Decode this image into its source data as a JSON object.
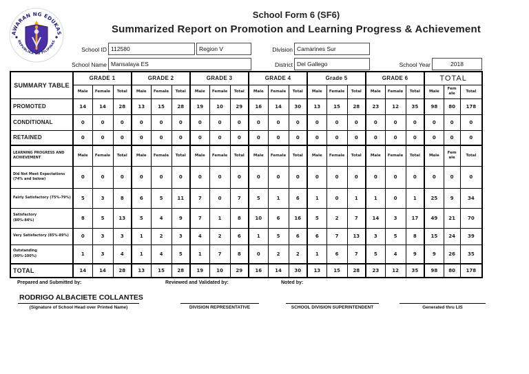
{
  "header": {
    "title1": "School Form 6 (SF6)",
    "title2": "Summarized Report on Promotion and Learning Progress & Achievement",
    "logo_top_text": "KAGAWARAN NG EDUKASYON",
    "logo_bottom_text": "REPUBLIKA NG PILIPINAS"
  },
  "info": {
    "school_id_label": "School ID",
    "school_id_value": "112580",
    "region_value": "Region V",
    "division_label": "Division",
    "division_value": "Camarines Sur",
    "school_name_label": "School Name",
    "school_name_value": "Mansalaya ES",
    "district_label": "District",
    "district_value": "Del Gallego",
    "school_year_label": "School Year",
    "school_year_value": "2018"
  },
  "table": {
    "summary_header": "SUMMARY TABLE",
    "groups": [
      "GRADE 1",
      "GRADE 2",
      "GRADE 3",
      "GRADE 4",
      "Grade 5",
      "GRADE 6",
      "TOTAL"
    ],
    "sub_headers": [
      "Male",
      "Female",
      "Total"
    ],
    "rows": [
      {
        "label": "PROMOTED",
        "type": "main",
        "values": [
          14,
          14,
          28,
          13,
          15,
          28,
          19,
          10,
          29,
          16,
          14,
          30,
          13,
          15,
          28,
          23,
          12,
          35,
          98,
          80,
          178
        ]
      },
      {
        "label": "CONDITIONAL",
        "type": "main",
        "values": [
          0,
          0,
          0,
          0,
          0,
          0,
          0,
          0,
          0,
          0,
          0,
          0,
          0,
          0,
          0,
          0,
          0,
          0,
          0,
          0,
          0
        ]
      },
      {
        "label": "RETAINED",
        "type": "main",
        "values": [
          0,
          0,
          0,
          0,
          0,
          0,
          0,
          0,
          0,
          0,
          0,
          0,
          0,
          0,
          0,
          0,
          0,
          0,
          0,
          0,
          0
        ]
      },
      {
        "label": "LEARNING PROGRESS AND ACHIEVEMENT",
        "type": "subheader",
        "values": []
      },
      {
        "label": "Did Not Meet Expectations (74% and below)",
        "type": "small",
        "values": [
          0,
          0,
          0,
          0,
          0,
          0,
          0,
          0,
          0,
          0,
          0,
          0,
          0,
          0,
          0,
          0,
          0,
          0,
          0,
          0,
          0
        ]
      },
      {
        "label": "Fairly Satisfactory (75%-79%)",
        "type": "small",
        "values": [
          5,
          3,
          8,
          6,
          5,
          11,
          7,
          0,
          7,
          5,
          1,
          6,
          1,
          0,
          1,
          1,
          0,
          1,
          25,
          9,
          34
        ]
      },
      {
        "label": "Satisfactory\n(80%-84%)",
        "type": "small",
        "values": [
          8,
          5,
          13,
          5,
          4,
          9,
          7,
          1,
          8,
          10,
          6,
          16,
          5,
          2,
          7,
          14,
          3,
          17,
          49,
          21,
          70
        ]
      },
      {
        "label": "Very Satisfactory (85%-89%)",
        "type": "small",
        "values": [
          0,
          3,
          3,
          1,
          2,
          3,
          4,
          2,
          6,
          1,
          5,
          6,
          6,
          7,
          13,
          3,
          5,
          8,
          15,
          24,
          39
        ]
      },
      {
        "label": "Outstanding\n(90%-100%)",
        "type": "small",
        "values": [
          1,
          3,
          4,
          1,
          4,
          5,
          1,
          7,
          8,
          0,
          2,
          2,
          1,
          6,
          7,
          5,
          4,
          9,
          9,
          26,
          35
        ]
      },
      {
        "label": "TOTAL",
        "type": "total",
        "values": [
          14,
          14,
          28,
          13,
          15,
          28,
          19,
          10,
          29,
          16,
          14,
          30,
          13,
          15,
          28,
          23,
          12,
          35,
          98,
          80,
          178
        ]
      }
    ]
  },
  "footer": {
    "prepared_label": "Prepared and Submitted by:",
    "reviewed_label": "Reviewed and Validated by:",
    "noted_label": "Noted by:",
    "preparer_name": "RODRIGO ALBACIETE COLLANTES",
    "preparer_caption": "(Signature of School Head over Printed Name)",
    "division_rep_caption": "DIVISION REPRESENTATIVE",
    "superintendent_caption": "SCHOOL DIVISION SUPERINTENDENT",
    "generated_caption": "Generated thru LIS"
  },
  "colors": {
    "seal_purple": "#4b2fa6",
    "seal_navy": "#1d1d78",
    "seal_gold": "#f2a81d",
    "border_black": "#000000"
  }
}
